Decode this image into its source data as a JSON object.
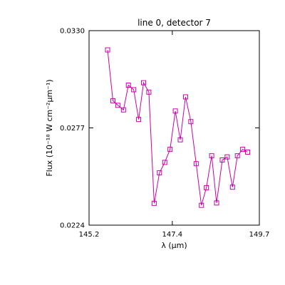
{
  "chart_data": {
    "type": "line",
    "title": "line 0, detector 7",
    "xlabel": "λ (μm)",
    "ylabel": "Flux (10⁻¹⁸ W cm⁻²μm⁻¹)",
    "xlim": [
      145.2,
      149.7
    ],
    "ylim": [
      0.0224,
      0.033
    ],
    "xticks": [
      "145.2",
      "147.4",
      "149.7"
    ],
    "yticks": [
      "0.0224",
      "0.0277",
      "0.0330"
    ],
    "grid": false,
    "legend": "none",
    "series": [
      {
        "color": "#cc00aa",
        "marker": "square",
        "x": [
          145.69,
          145.83,
          145.96,
          146.11,
          146.24,
          146.38,
          146.51,
          146.64,
          146.78,
          146.92,
          147.06,
          147.2,
          147.34,
          147.48,
          147.61,
          147.75,
          147.89,
          148.03,
          148.17,
          148.3,
          148.44,
          148.57,
          148.72,
          148.85,
          148.99,
          149.12,
          149.26,
          149.39
        ],
        "y": [
          0.03195,
          0.02918,
          0.02893,
          0.02868,
          0.03003,
          0.02978,
          0.02816,
          0.03016,
          0.02965,
          0.02359,
          0.02525,
          0.02582,
          0.02653,
          0.02862,
          0.02705,
          0.02939,
          0.02804,
          0.02575,
          0.02348,
          0.02444,
          0.02618,
          0.02361,
          0.02595,
          0.02612,
          0.02447,
          0.02618,
          0.02653,
          0.02638
        ]
      }
    ]
  }
}
